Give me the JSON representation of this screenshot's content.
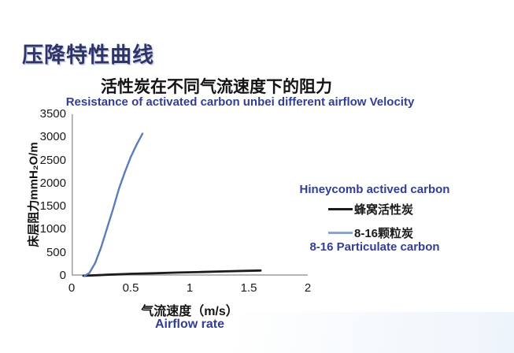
{
  "slide": {
    "title": "压降特性曲线"
  },
  "chart_data": {
    "type": "line",
    "title": "活性炭在不同气流速度下的阻力",
    "subtitle": "Resistance of activated carbon unbei different airflow Velocity",
    "xlabel": "气流速度（m/s）",
    "xlabel_en": "Airflow rate",
    "ylabel": "床层阻力mmH₂O/m",
    "xlim": [
      0,
      2
    ],
    "ylim": [
      0,
      3500
    ],
    "xticks": [
      "0",
      "0.5",
      "1",
      "1.5",
      "2"
    ],
    "yticks": [
      "0",
      "500",
      "1000",
      "1500",
      "2000",
      "2500",
      "3000",
      "3500"
    ],
    "grid": false,
    "legend_position": "right-of-plot",
    "axis_color": "#9e9e9e",
    "series": [
      {
        "name": "蜂窝活性炭",
        "name_en": "Hineycomb actived carbon",
        "color": "#1c1c1c",
        "swatch_color": "#1c1c1c",
        "points": [
          [
            0.1,
            0
          ],
          [
            0.3,
            22
          ],
          [
            0.5,
            42
          ],
          [
            0.7,
            55
          ],
          [
            0.9,
            70
          ],
          [
            1.1,
            82
          ],
          [
            1.3,
            95
          ],
          [
            1.45,
            105
          ],
          [
            1.6,
            115
          ]
        ]
      },
      {
        "name": "8-16颗粒炭",
        "name_en": "8-16 Particulate carbon",
        "color": "#5b7cb8",
        "swatch_color": "#8da3cb",
        "points": [
          [
            0.11,
            0
          ],
          [
            0.15,
            60
          ],
          [
            0.2,
            280
          ],
          [
            0.25,
            620
          ],
          [
            0.3,
            1030
          ],
          [
            0.35,
            1440
          ],
          [
            0.4,
            1880
          ],
          [
            0.45,
            2240
          ],
          [
            0.5,
            2570
          ],
          [
            0.55,
            2840
          ],
          [
            0.6,
            3080
          ]
        ]
      }
    ]
  },
  "colors": {
    "heading": "#2f3468",
    "accent_text": "#333d94"
  }
}
